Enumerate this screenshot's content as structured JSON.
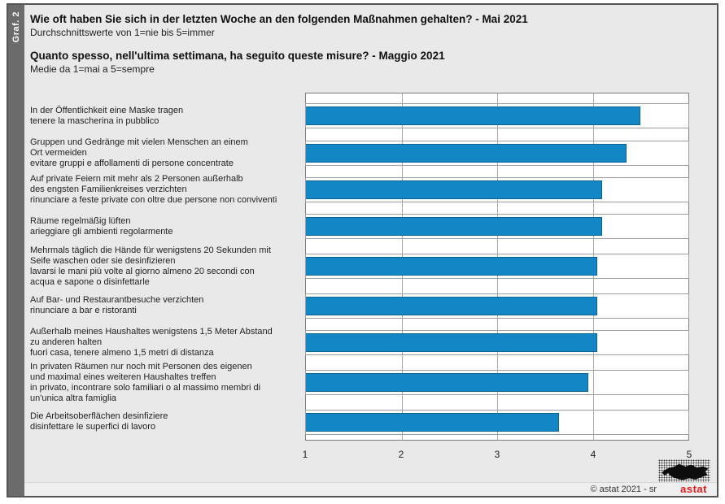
{
  "graf_label": "Graf. 2",
  "header": {
    "title_de": "Wie oft haben Sie sich in der letzten Woche an den folgenden Maßnahmen gehalten? - Mai 2021",
    "subtitle_de": "Durchschnittswerte von 1=nie bis 5=immer",
    "title_it": "Quanto spesso, nell'ultima settimana, ha seguito queste misure? - Maggio 2021",
    "subtitle_it": "Medie da 1=mai a 5=sempre"
  },
  "chart_data": {
    "type": "bar",
    "orientation": "horizontal",
    "xlim": [
      1,
      5
    ],
    "x_ticks": [
      1,
      2,
      3,
      4,
      5
    ],
    "grid": true,
    "bar_color": "#1386c6",
    "categories": [
      "In der Öffentlichkeit eine Maske tragen\ntenere la mascherina in pubblico",
      "Gruppen und Gedränge mit vielen Menschen an einem\nOrt vermeiden\nevitare gruppi e affollamenti di persone concentrate",
      "Auf private Feiern mit mehr als 2 Personen außerhalb\ndes engsten Familienkreises verzichten\nrinunciare a feste private con oltre due persone non conviventi",
      "Räume regelmäßig lüften\narieggiare gli ambienti regolarmente",
      "Mehrmals täglich die Hände für wenigstens 20 Sekunden mit\nSeife waschen oder sie desinfizieren\nlavarsi le mani più volte al giorno almeno 20 secondi con\nacqua e sapone o disinfettarle",
      "Auf Bar- und Restaurantbesuche verzichten\nrinunciare a bar e ristoranti",
      "Außerhalb meines Haushaltes wenigstens 1,5 Meter Abstand\nzu anderen halten\nfuori casa, tenere almeno 1,5 metri di distanza",
      "In privaten Räumen nur noch mit Personen des eigenen\nund maximal eines weiteren Haushaltes treffen\nin privato, incontrare solo familiari o al massimo membri di\nun'unica altra famiglia",
      "Die Arbeitsoberflächen desinfiziere\ndisinfettare le superfici di lavoro"
    ],
    "values": [
      4.5,
      4.35,
      4.1,
      4.1,
      4.05,
      4.05,
      4.05,
      3.95,
      3.65
    ]
  },
  "footer": {
    "copyright": "© astat 2021 - sr",
    "logo_text": "astat",
    "logo_color": "#e8191c"
  }
}
